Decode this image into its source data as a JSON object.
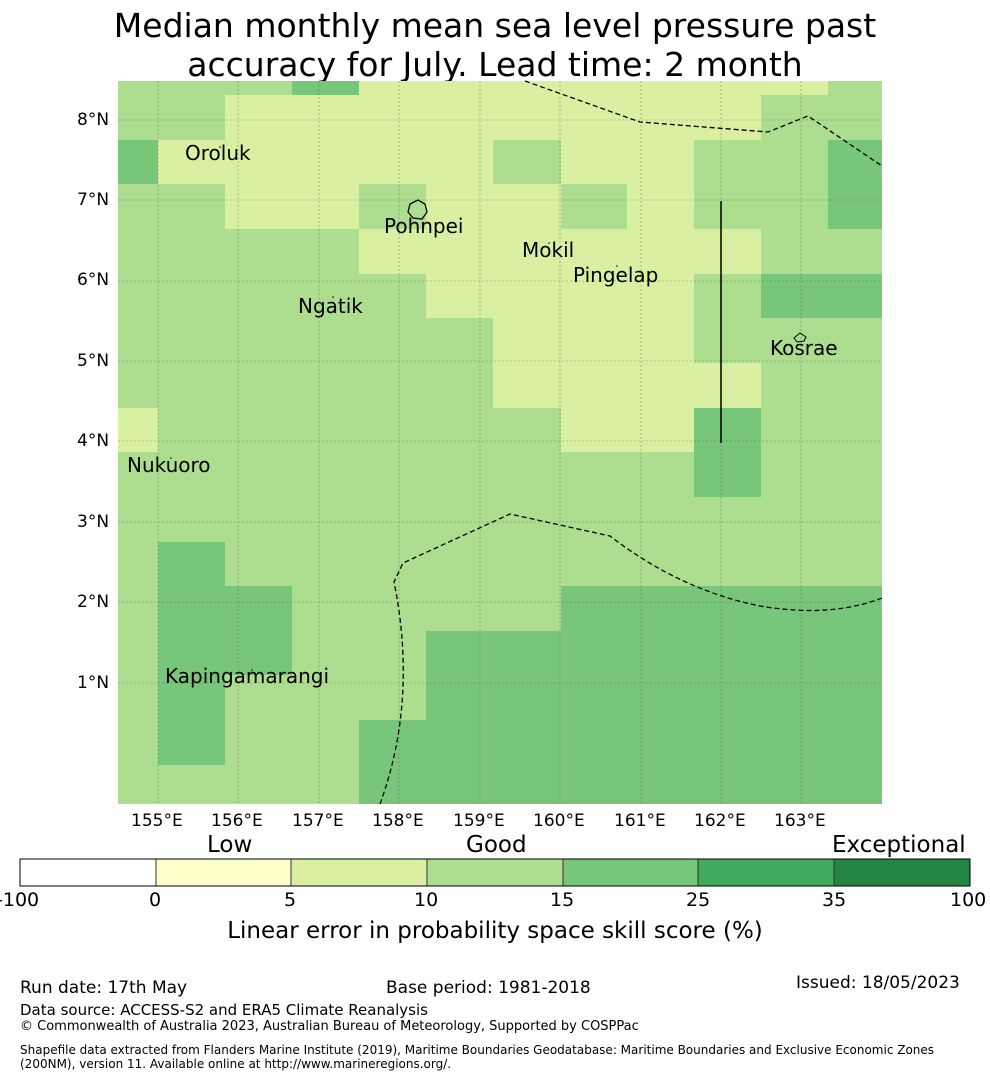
{
  "title_line1": "Median monthly mean sea level pressure past",
  "title_line2": "accuracy for July. Lead time: 2 month",
  "map": {
    "lat_labels": [
      "8°N",
      "7°N",
      "6°N",
      "5°N",
      "4°N",
      "3°N",
      "2°N",
      "1°N"
    ],
    "lon_labels": [
      "155°E",
      "156°E",
      "157°E",
      "158°E",
      "159°E",
      "160°E",
      "161°E",
      "162°E",
      "163°E"
    ],
    "places": [
      {
        "name": "Oroluk"
      },
      {
        "name": "Pohnpei"
      },
      {
        "name": "Mokil"
      },
      {
        "name": "Pingelap"
      },
      {
        "name": "Ngatik"
      },
      {
        "name": "Kosrae"
      },
      {
        "name": "Nukuoro"
      },
      {
        "name": "Kapingamarangi"
      }
    ],
    "legend_colors": {
      "0_5": "#ffffcc",
      "5_10": "#d9f0a3",
      "10_15": "#addd8e",
      "15_25": "#78c679",
      "25_35": "#41ab5d",
      "35_100": "#238443"
    }
  },
  "colorbar": {
    "categories": {
      "low": "Low",
      "good": "Good",
      "exceptional": "Exceptional"
    },
    "ticks": [
      "-100",
      "0",
      "5",
      "10",
      "15",
      "25",
      "35",
      "100"
    ],
    "colors": [
      "#ffffff",
      "#ffffcc",
      "#d9f0a3",
      "#addd8e",
      "#78c679",
      "#41ab5d",
      "#238443"
    ],
    "label": "Linear error in probability space skill score (%)"
  },
  "footer": {
    "run_date": "Run date: 17th May",
    "base_period": "Base period: 1981-2018",
    "issued": "Issued: 18/05/2023",
    "data_source": "Data source: ACCESS-S2 and ERA5 Climate Reanalysis",
    "copyright": "© Commonwealth of Australia 2023, Australian Bureau of Meteorology, Supported by COSPPac",
    "shapefile_line1": "Shapefile data extracted from Flanders Marine Institute (2019), Maritime Boundaries Geodatabase: Maritime Boundaries and Exclusive Economic Zones",
    "shapefile_line2": "(200NM), version 11. Available online at http://www.marineregions.org/."
  }
}
